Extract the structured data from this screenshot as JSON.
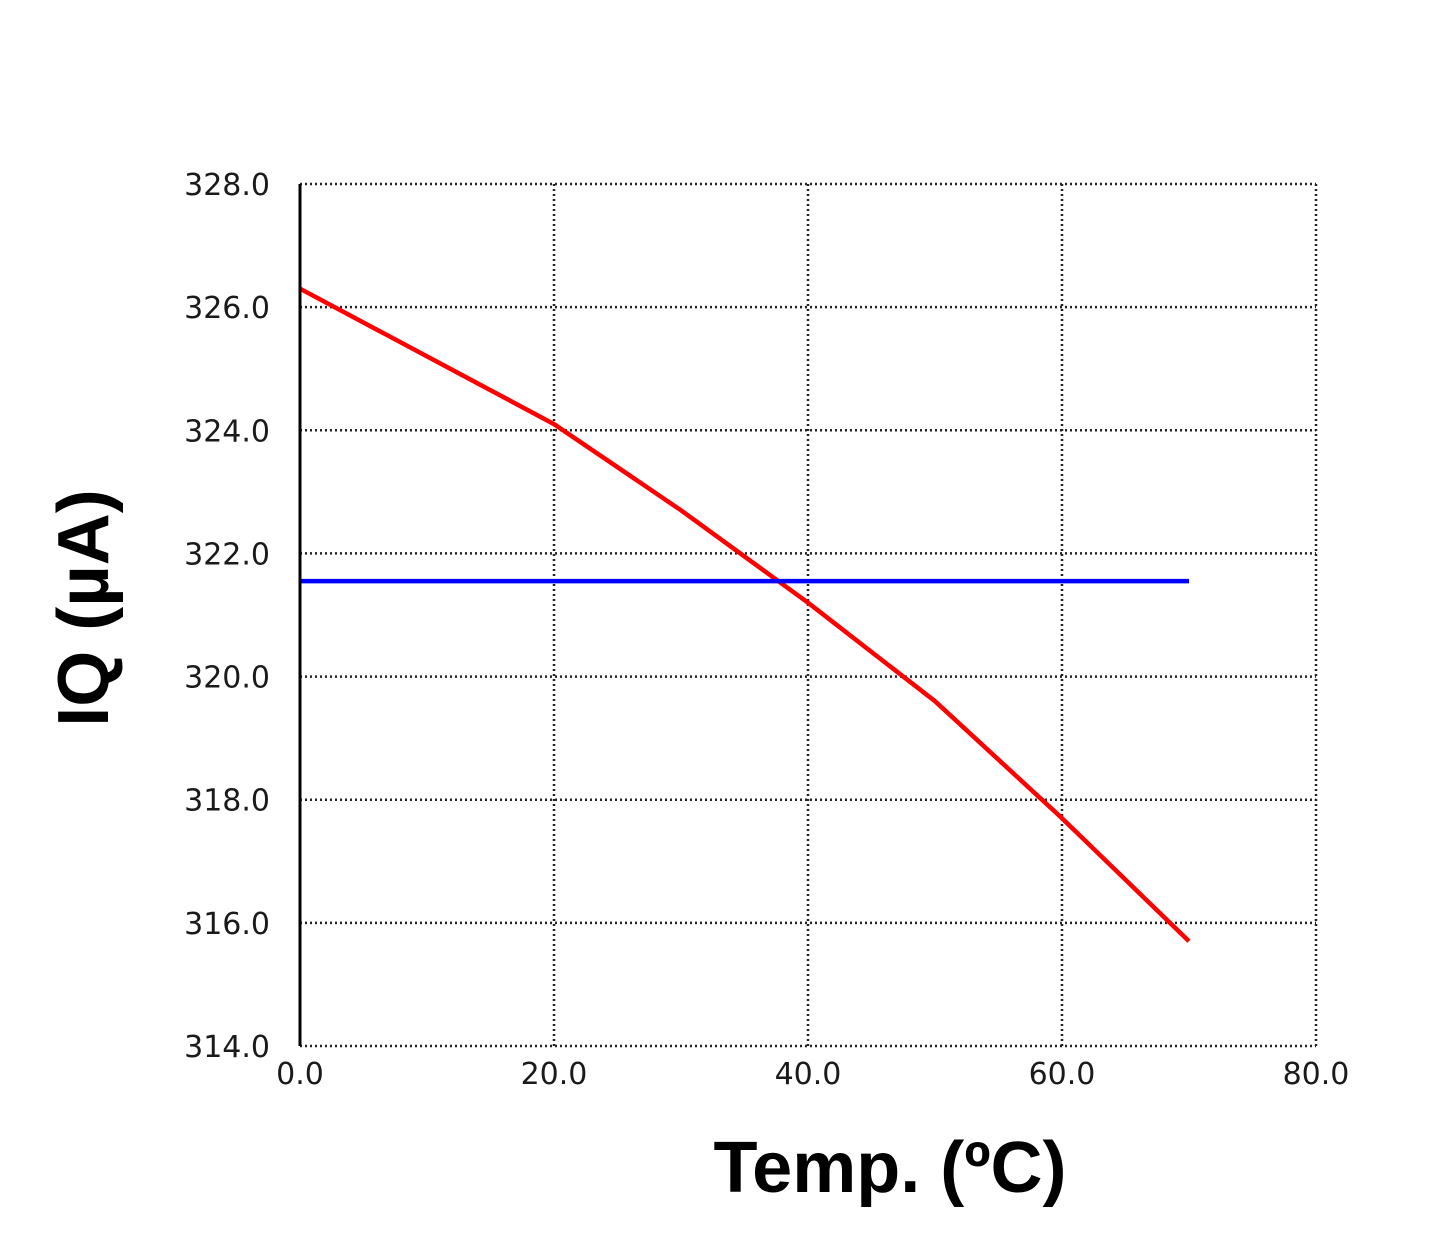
{
  "chart_data": {
    "type": "line",
    "xlabel": "Temp. (ºC)",
    "ylabel": "IQ (µA)",
    "xlim": [
      0,
      80
    ],
    "ylim": [
      314,
      328
    ],
    "x_ticks": [
      "0.0",
      "20.0",
      "40.0",
      "60.0",
      "80.0"
    ],
    "y_ticks": [
      "314.0",
      "316.0",
      "318.0",
      "320.0",
      "322.0",
      "324.0",
      "326.0",
      "328.0"
    ],
    "grid": true,
    "legend": "none",
    "series": [
      {
        "color": "#ff0000",
        "x": [
          0,
          10,
          20,
          30,
          40,
          50,
          60,
          70
        ],
        "y": [
          326.3,
          325.2,
          324.1,
          322.7,
          321.2,
          319.6,
          317.7,
          315.7
        ]
      },
      {
        "color": "#0000ff",
        "x": [
          0,
          70
        ],
        "y": [
          321.55,
          321.55
        ]
      }
    ]
  }
}
